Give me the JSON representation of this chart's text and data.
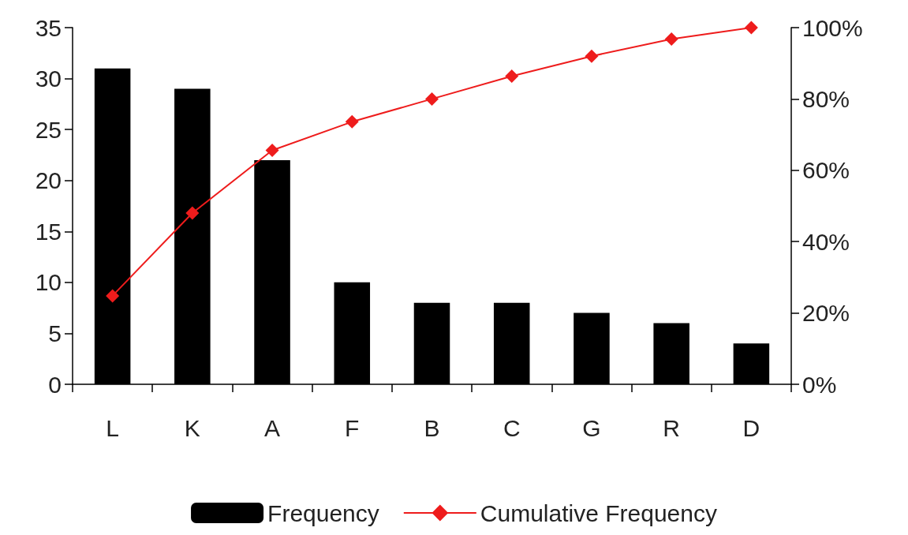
{
  "chart_data": {
    "type": "bar",
    "categories": [
      "L",
      "K",
      "A",
      "F",
      "B",
      "C",
      "G",
      "R",
      "D"
    ],
    "series": [
      {
        "name": "Frequency",
        "color": "#000000",
        "values": [
          31,
          29,
          22,
          10,
          8,
          8,
          7,
          6,
          4
        ]
      },
      {
        "name": "Cumulative Frequency",
        "type": "line",
        "axis": "y2",
        "color": "#ee1c1c",
        "marker": "diamond",
        "values": [
          24.8,
          48,
          65.6,
          73.6,
          80,
          86.4,
          92,
          96.8,
          100
        ]
      }
    ],
    "ylim": [
      0,
      35
    ],
    "yticks": [
      0,
      5,
      10,
      15,
      20,
      25,
      30,
      35
    ],
    "y2lim": [
      0,
      100
    ],
    "y2ticks": [
      {
        "value": 0,
        "label": "0%"
      },
      {
        "value": 20,
        "label": "20%"
      },
      {
        "value": 40,
        "label": "40%"
      },
      {
        "value": 60,
        "label": "60%"
      },
      {
        "value": 80,
        "label": "80%"
      },
      {
        "value": 100,
        "label": "100%"
      }
    ],
    "grid": false,
    "legend": "bottom"
  }
}
